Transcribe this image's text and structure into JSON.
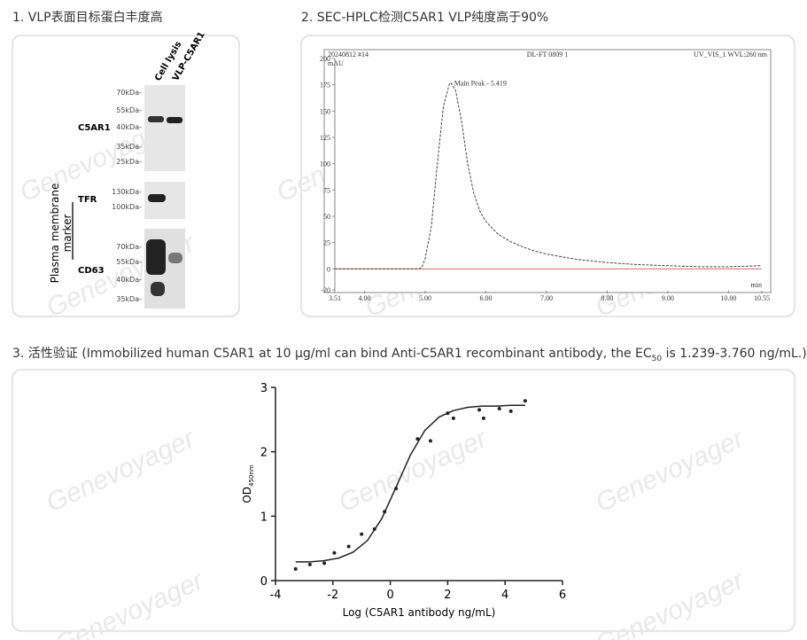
{
  "panels": {
    "blot_title": "1. VLP表面目标蛋白丰度高",
    "hplc_title": "2. SEC-HPLC检测C5AR1 VLP纯度高于90%",
    "activity_title_prefix": "3. 活性验证 (Immobilized human C5AR1 at 10 μg/ml can bind Anti-C5AR1 recombinant antibody, the EC",
    "activity_title_sub": "50",
    "activity_title_suffix": " is 1.239-3.760 ng/mL.)"
  },
  "watermark": "Genevoyager",
  "blot": {
    "lanes": [
      "Cell lysis",
      "VLP-C5AR1"
    ],
    "side_label_1": "Plasma membrane",
    "side_label_2": "marker",
    "blocks": [
      {
        "name": "C5AR1",
        "markers": [
          "70kDa-",
          "55kDa-",
          "40kDa-",
          "35kDa-",
          "25kDa-"
        ]
      },
      {
        "name": "TFR",
        "markers": [
          "130kDa-",
          "100kDa-"
        ]
      },
      {
        "name": "CD63",
        "markers": [
          "70kDa-",
          "55kDa-",
          "40kDa-",
          "35kDa-"
        ]
      }
    ]
  },
  "chart_data": [
    {
      "type": "line",
      "header_left": "20240812 #14",
      "header_center": "DL-FT 0809 1",
      "header_right": "UV_VIS_1 WVL:260 nm",
      "y_label": "mAU",
      "x_label": "min",
      "annotation": "Main Peak - 5.419",
      "xlim": [
        3.51,
        10.55
      ],
      "xticks": [
        3.51,
        {
          "value": 4,
          "label": "4.00"
        },
        {
          "value": 5,
          "label": "5.00"
        },
        {
          "value": 6,
          "label": "6.00"
        },
        {
          "value": 7,
          "label": "7.00"
        },
        {
          "value": 8,
          "label": "8.00"
        },
        {
          "value": 9,
          "label": "9.00"
        },
        {
          "value": 10,
          "label": "10.00"
        },
        10.55
      ],
      "ylim": [
        -20,
        200
      ],
      "yticks": [
        -20,
        0,
        25,
        50,
        75,
        100,
        125,
        150,
        175,
        200
      ],
      "baseline_color": "#c0392b",
      "series": [
        {
          "color": "#333333",
          "x": [
            3.51,
            4.5,
            4.9,
            4.95,
            5.0,
            5.1,
            5.2,
            5.3,
            5.4,
            5.42,
            5.5,
            5.6,
            5.7,
            5.8,
            5.9,
            6.0,
            6.2,
            6.4,
            6.6,
            6.8,
            7.0,
            7.5,
            8.0,
            8.5,
            9.0,
            9.5,
            10.0,
            10.55
          ],
          "values": [
            0,
            0,
            0,
            2,
            10,
            40,
            100,
            155,
            176,
            177,
            170,
            140,
            100,
            72,
            55,
            45,
            33,
            26,
            21,
            17,
            14,
            9,
            6,
            4,
            3,
            2,
            2,
            3
          ]
        }
      ]
    },
    {
      "type": "scatter",
      "x_label": "Log (C5AR1 antibody ng/mL)",
      "y_label": "OD",
      "y_label_sub": "450nm",
      "xlim": [
        -4,
        6
      ],
      "xticks": [
        -4,
        -2,
        0,
        2,
        4,
        6
      ],
      "ylim": [
        0,
        3
      ],
      "yticks": [
        0,
        1,
        2,
        3
      ],
      "color": "#222222",
      "x": [
        -3.3,
        -2.8,
        -2.3,
        -1.95,
        -1.45,
        -1.0,
        -0.55,
        -0.2,
        0.2,
        0.95,
        1.4,
        2.0,
        2.2,
        3.1,
        3.25,
        3.8,
        4.2,
        4.7
      ],
      "values": [
        0.18,
        0.25,
        0.27,
        0.43,
        0.53,
        0.72,
        0.8,
        1.07,
        1.43,
        2.2,
        2.17,
        2.6,
        2.52,
        2.65,
        2.52,
        2.67,
        2.63,
        2.79
      ],
      "fit": {
        "x": [
          -3.3,
          -2.8,
          -2.3,
          -1.8,
          -1.3,
          -0.8,
          -0.3,
          0.2,
          0.7,
          1.2,
          1.7,
          2.2,
          2.7,
          3.2,
          3.7,
          4.2,
          4.7
        ],
        "values": [
          0.29,
          0.29,
          0.31,
          0.35,
          0.44,
          0.62,
          0.96,
          1.45,
          1.95,
          2.33,
          2.54,
          2.64,
          2.69,
          2.71,
          2.71,
          2.72,
          2.72
        ]
      }
    }
  ]
}
